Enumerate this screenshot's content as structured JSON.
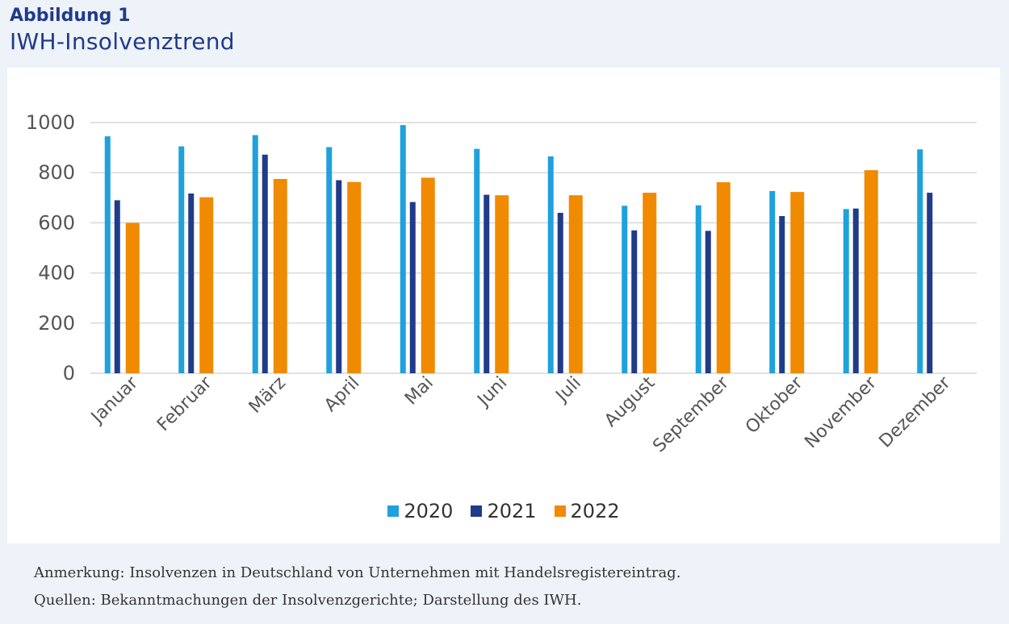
{
  "header": {
    "figure_label": "Abbildung 1",
    "title": "IWH-Insolvenztrend"
  },
  "notes": {
    "line1": "Anmerkung: Insolvenzen in Deutschland von Unternehmen mit Handelsregistereintrag.",
    "line2": "Quellen: Bekanntmachungen der Insolvenzgerichte; Darstellung des IWH."
  },
  "colors": {
    "2020": "#1fa1dc",
    "2021": "#1f3b8a",
    "2022": "#f08a00",
    "grid": "#d9d9d9",
    "axis_text": "#555555"
  },
  "chart_data": {
    "type": "bar",
    "title": "IWH-Insolvenztrend",
    "xlabel": "",
    "ylabel": "",
    "ylim": [
      0,
      1000
    ],
    "yticks": [
      0,
      200,
      400,
      600,
      800,
      1000
    ],
    "grid": true,
    "legend_position": "bottom",
    "categories": [
      "Januar",
      "Februar",
      "März",
      "April",
      "Mai",
      "Juni",
      "Juli",
      "August",
      "September",
      "Oktober",
      "November",
      "Dezember"
    ],
    "series": [
      {
        "name": "2020",
        "values": [
          945,
          905,
          950,
          902,
          990,
          895,
          865,
          668,
          670,
          727,
          655,
          893
        ]
      },
      {
        "name": "2021",
        "values": [
          690,
          717,
          872,
          770,
          683,
          712,
          640,
          570,
          568,
          627,
          657,
          720
        ]
      },
      {
        "name": "2022",
        "values": [
          600,
          702,
          775,
          763,
          780,
          710,
          710,
          720,
          762,
          723,
          810,
          null
        ]
      }
    ]
  }
}
